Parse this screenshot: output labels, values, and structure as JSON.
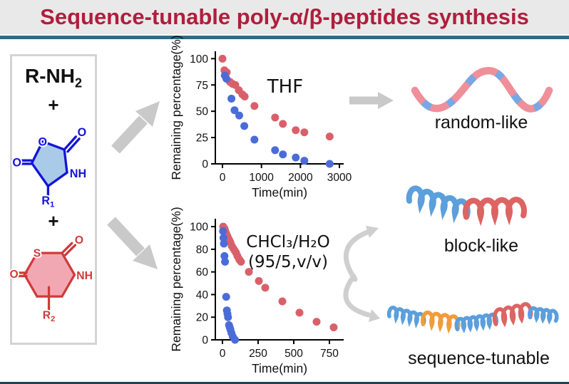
{
  "title": "Sequence-tunable poly-α/β-peptides synthesis",
  "colors": {
    "title_red": "#b01e3c",
    "divider_teal": "#2e6b86",
    "dot_red": "#d9606b",
    "dot_blue": "#4b6cd8",
    "chem_blue": "#1414d8",
    "chem_blue_fill": "#a9cbe8",
    "chem_red": "#cf3a3a",
    "chem_red_fill": "#f2a8b2",
    "ribbon_pink": "#ef8f9a",
    "ribbon_blue": "#76a8e6",
    "helix_blue": "#5b9fdc",
    "helix_red": "#dd6462",
    "helix_orange": "#f29c38",
    "arrow_gray": "#c9c9c9"
  },
  "reactants": {
    "amine_base": "R-NH",
    "amine_sub": "2",
    "plus": "+",
    "blue_monomer": {
      "ring_o": "O",
      "carbonyl_o": "O",
      "left_o": "O",
      "nh": "NH",
      "r_base": "R",
      "r_sub": "1"
    },
    "red_monomer": {
      "s": "S",
      "carbonyl_o": "O",
      "left_o": "O",
      "nh": "NH",
      "r_base": "R",
      "r_sub": "2"
    }
  },
  "products": {
    "random": "random-like",
    "block": "block-like",
    "sequence": "sequence-tunable"
  },
  "chart_data": [
    {
      "type": "scatter",
      "annotation": [
        "THF"
      ],
      "xlabel": "Time(min)",
      "ylabel": "Remaining percentage(%)",
      "xlim": [
        0,
        3000
      ],
      "ylim": [
        0,
        107
      ],
      "xticks": [
        0,
        1000,
        2000,
        3000
      ],
      "yticks": [
        0,
        25,
        50,
        75,
        100
      ],
      "grid": false,
      "legend": "none",
      "series": [
        {
          "name": "red",
          "color": "#d9606b",
          "points": [
            [
              0,
              100
            ],
            [
              50,
              89
            ],
            [
              110,
              87
            ],
            [
              190,
              78
            ],
            [
              260,
              76
            ],
            [
              330,
              75
            ],
            [
              420,
              70
            ],
            [
              510,
              66
            ],
            [
              570,
              64
            ],
            [
              820,
              55
            ],
            [
              1350,
              44
            ],
            [
              1550,
              38
            ],
            [
              1880,
              32
            ],
            [
              2100,
              30
            ],
            [
              2750,
              26
            ]
          ]
        },
        {
          "name": "blue",
          "color": "#4b6cd8",
          "points": [
            [
              60,
              84
            ],
            [
              100,
              81
            ],
            [
              230,
              62
            ],
            [
              310,
              51
            ],
            [
              430,
              46
            ],
            [
              560,
              36
            ],
            [
              820,
              23
            ],
            [
              1350,
              13
            ],
            [
              1550,
              9
            ],
            [
              1880,
              6
            ],
            [
              2100,
              3
            ],
            [
              2750,
              0
            ]
          ]
        }
      ]
    },
    {
      "type": "scatter",
      "annotation": [
        "CHCl₃/H₂O",
        "(95/5,v/v)"
      ],
      "xlabel": "Time(min)",
      "ylabel": "Remaining percentage(%)",
      "xlim": [
        0,
        800
      ],
      "ylim": [
        0,
        107
      ],
      "xticks": [
        0,
        250,
        500,
        750
      ],
      "yticks": [
        0,
        20,
        40,
        60,
        80,
        100
      ],
      "grid": false,
      "legend": "none",
      "series": [
        {
          "name": "red",
          "color": "#d9606b",
          "points": [
            [
              5,
              100
            ],
            [
              10,
              99
            ],
            [
              15,
              98
            ],
            [
              20,
              96
            ],
            [
              26,
              94
            ],
            [
              33,
              92
            ],
            [
              40,
              90
            ],
            [
              48,
              88
            ],
            [
              56,
              86
            ],
            [
              65,
              83
            ],
            [
              75,
              81
            ],
            [
              85,
              79
            ],
            [
              95,
              77
            ],
            [
              105,
              74
            ],
            [
              118,
              71
            ],
            [
              130,
              69
            ],
            [
              185,
              60
            ],
            [
              255,
              52
            ],
            [
              300,
              46
            ],
            [
              420,
              34
            ],
            [
              540,
              24
            ],
            [
              660,
              16
            ],
            [
              780,
              11
            ]
          ]
        },
        {
          "name": "blue",
          "color": "#4b6cd8",
          "points": [
            [
              4,
              96
            ],
            [
              7,
              90
            ],
            [
              10,
              85
            ],
            [
              14,
              74
            ],
            [
              18,
              69
            ],
            [
              26,
              38
            ],
            [
              31,
              26
            ],
            [
              35,
              23
            ],
            [
              39,
              20
            ],
            [
              46,
              13
            ],
            [
              51,
              11
            ],
            [
              56,
              9
            ],
            [
              63,
              6
            ],
            [
              72,
              3
            ],
            [
              88,
              0
            ]
          ]
        }
      ]
    }
  ]
}
